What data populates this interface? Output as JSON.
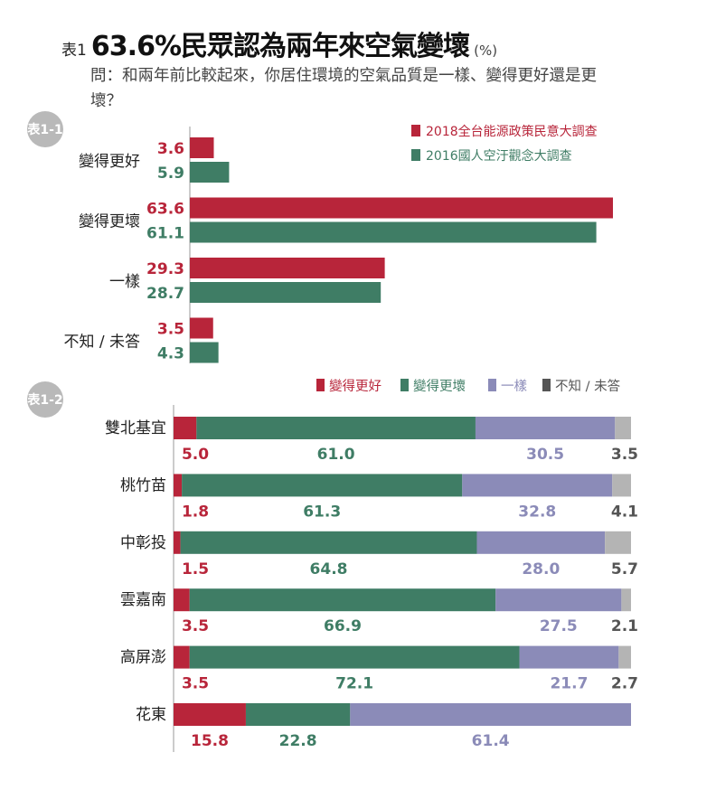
{
  "title": {
    "prefix": "表1",
    "main": "63.6%民眾認為兩年來空氣變壞",
    "unit": "(%)"
  },
  "question": "問：和兩年前比較起來，你居住環境的空氣品質是一樣、變得更好還是更壞？",
  "colors": {
    "red": "#b8253a",
    "green": "#3f7d65",
    "purple": "#8b8bb8",
    "grey": "#b4b4b4",
    "legend_grey": "#555555",
    "badge": "#b9b9b9"
  },
  "chart_data": [
    {
      "type": "bar",
      "orientation": "horizontal",
      "badge": "表1-1",
      "categories": [
        "變得更好",
        "變得更壞",
        "一樣",
        "不知 / 未答"
      ],
      "series": [
        {
          "name": "2018全台能源政策民意大調查",
          "values": [
            3.6,
            63.6,
            29.3,
            3.5
          ]
        },
        {
          "name": "2016國人空汙觀念大調查",
          "values": [
            5.9,
            61.1,
            28.7,
            4.3
          ]
        }
      ],
      "value_labels": [
        [
          "3.6",
          "63.6",
          "29.3",
          "3.5"
        ],
        [
          "5.9",
          "61.1",
          "28.7",
          "4.3"
        ]
      ],
      "legend": "top-right"
    },
    {
      "type": "bar",
      "orientation": "horizontal",
      "stacked": true,
      "badge": "表1-2",
      "categories": [
        "雙北基宜",
        "桃竹苗",
        "中彰投",
        "雲嘉南",
        "高屏澎",
        "花東"
      ],
      "series": [
        {
          "name": "變得更好",
          "values": [
            5.0,
            1.8,
            1.5,
            3.5,
            3.5,
            15.8
          ]
        },
        {
          "name": "變得更壞",
          "values": [
            61.0,
            61.3,
            64.8,
            66.9,
            72.1,
            22.8
          ]
        },
        {
          "name": "一樣",
          "values": [
            30.5,
            32.8,
            28.0,
            27.5,
            21.7,
            61.4
          ]
        },
        {
          "name": "不知 / 未答",
          "values": [
            3.5,
            4.1,
            5.7,
            2.1,
            2.7,
            0
          ]
        }
      ],
      "value_labels": [
        [
          "5.0",
          "61.0",
          "30.5",
          "3.5"
        ],
        [
          "1.8",
          "61.3",
          "32.8",
          "4.1"
        ],
        [
          "1.5",
          "64.8",
          "28.0",
          "5.7"
        ],
        [
          "3.5",
          "66.9",
          "27.5",
          "2.1"
        ],
        [
          "3.5",
          "72.1",
          "21.7",
          "2.7"
        ],
        [
          "15.8",
          "22.8",
          "61.4",
          ""
        ]
      ],
      "legend": "top-right",
      "xlim": [
        0,
        100
      ]
    }
  ]
}
